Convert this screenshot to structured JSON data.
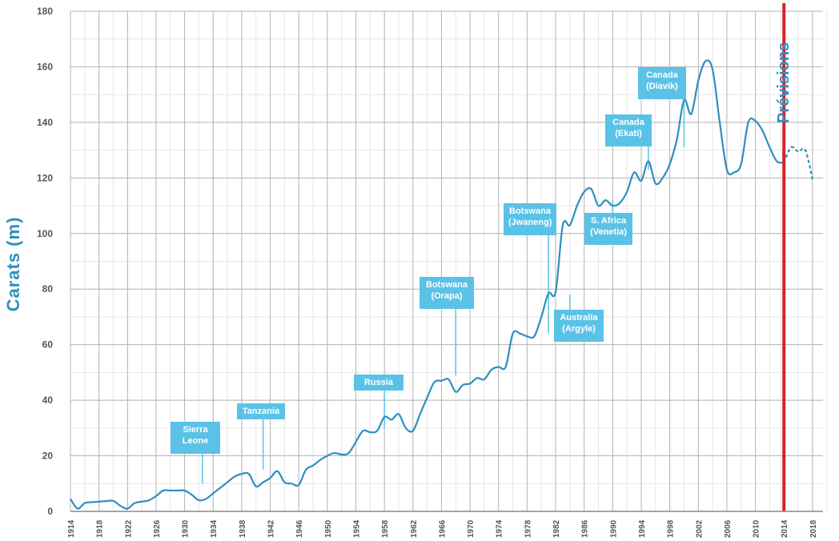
{
  "chart_data": {
    "type": "line",
    "ylabel": "Carats (m)",
    "xlabel": "",
    "ylim": [
      0,
      180
    ],
    "xlim": [
      1914,
      2018
    ],
    "yticks": [
      0,
      20,
      40,
      60,
      80,
      100,
      120,
      140,
      160,
      180
    ],
    "xticks": [
      1914,
      1918,
      1922,
      1926,
      1930,
      1934,
      1938,
      1942,
      1946,
      1950,
      1954,
      1958,
      1962,
      1966,
      1970,
      1974,
      1978,
      1982,
      1986,
      1990,
      1994,
      1998,
      2002,
      2006,
      2010,
      2014,
      2018
    ],
    "grid": true,
    "series": [
      {
        "style": "solid",
        "color": "#2e8fbf",
        "x": [
          1914,
          1915,
          1916,
          1917,
          1918,
          1919,
          1920,
          1921,
          1922,
          1923,
          1924,
          1925,
          1926,
          1927,
          1928,
          1929,
          1930,
          1931,
          1932,
          1933,
          1934,
          1935,
          1936,
          1937,
          1938,
          1939,
          1940,
          1941,
          1942,
          1943,
          1944,
          1945,
          1946,
          1947,
          1948,
          1949,
          1950,
          1951,
          1952,
          1953,
          1954,
          1955,
          1956,
          1957,
          1958,
          1959,
          1960,
          1961,
          1962,
          1963,
          1964,
          1965,
          1966,
          1967,
          1968,
          1969,
          1970,
          1971,
          1972,
          1973,
          1974,
          1975,
          1976,
          1977,
          1978,
          1979,
          1980,
          1981,
          1982,
          1983,
          1984,
          1985,
          1986,
          1987,
          1988,
          1989,
          1990,
          1991,
          1992,
          1993,
          1994,
          1995,
          1996,
          1997,
          1998,
          1999,
          2000,
          2001,
          2002,
          2003,
          2004,
          2005,
          2006,
          2007,
          2008,
          2009,
          2010,
          2011,
          2012,
          2013,
          2014
        ],
        "y": [
          4.5,
          1,
          3,
          3.3,
          3.5,
          3.7,
          3.8,
          2,
          1,
          3,
          3.5,
          4,
          5.5,
          7.5,
          7.5,
          7.5,
          7.5,
          6,
          4,
          4.5,
          6.5,
          8.5,
          10.5,
          12.5,
          13.5,
          13.5,
          9,
          10.5,
          12,
          14.5,
          10.5,
          10,
          9.5,
          15,
          16.5,
          18.5,
          20,
          21,
          20.5,
          21,
          25,
          29,
          28.5,
          29,
          34,
          33,
          35,
          30,
          29,
          35,
          41,
          46.5,
          47,
          47.5,
          43,
          45.5,
          46,
          48,
          47.5,
          51,
          52,
          52,
          64,
          64,
          63,
          63,
          70,
          78.5,
          79,
          103,
          103,
          110,
          115,
          116,
          110,
          112,
          110,
          111,
          115,
          122,
          119,
          126,
          118,
          120,
          125,
          134,
          148,
          143,
          155,
          162,
          159,
          140,
          123,
          122,
          125,
          140,
          140.5,
          137,
          131,
          126,
          125.5
        ]
      },
      {
        "style": "dashed",
        "color": "#2e8fbf",
        "x": [
          2014,
          2015,
          2016,
          2017,
          2018
        ],
        "y": [
          125.5,
          131,
          129.5,
          130,
          119.5
        ]
      }
    ],
    "forecast_line": {
      "x": 2014,
      "color": "#d9232a",
      "label": "Prévisions"
    },
    "annotations": [
      {
        "text": "Sierra\nLeone",
        "x": 1932.5,
        "y_anchor": 10
      },
      {
        "text": "Tanzania",
        "x": 1941,
        "y_anchor": 15
      },
      {
        "text": "Russia",
        "x": 1958,
        "y_anchor": 30
      },
      {
        "text": "Botswana\n(Orapa)",
        "x": 1968,
        "y_anchor": 49
      },
      {
        "text": "Botswana\n(Jwaneng)",
        "x": 1981,
        "y_anchor": 64
      },
      {
        "text": "Australia\n(Argyle)",
        "x": 1984,
        "y_anchor": 78
      },
      {
        "text": "S. Africa\n(Venetia)",
        "x": 1990,
        "y_anchor": 112
      },
      {
        "text": "Canada\n(Ekati)",
        "x": 1995,
        "y_anchor": 123
      },
      {
        "text": "Canada\n(Diavik)",
        "x": 2000,
        "y_anchor": 131
      }
    ]
  }
}
